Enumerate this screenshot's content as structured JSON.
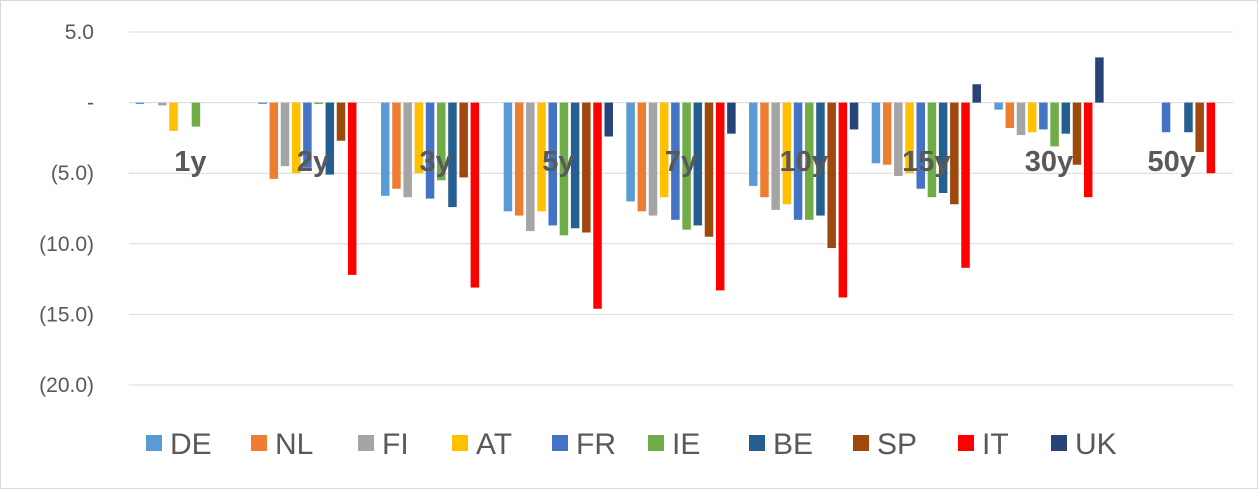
{
  "chart_data": {
    "type": "bar",
    "categories": [
      "1y",
      "2y",
      "3y",
      "5y",
      "7y",
      "10y",
      "15y",
      "30y",
      "50y"
    ],
    "y_tick_labels": [
      "5.0",
      "-",
      "(5.0)",
      "(10.0)",
      "(15.0)",
      "(20.0)"
    ],
    "y_ticks": [
      5,
      0,
      -5,
      -10,
      -15,
      -20
    ],
    "ylim": [
      -20,
      5
    ],
    "grid": true,
    "legend_position": "bottom",
    "series": [
      {
        "name": "DE",
        "color": "#5b9bd5",
        "values": [
          -0.1,
          -0.1,
          -6.6,
          -7.7,
          -7.0,
          -5.9,
          -4.3,
          -0.5,
          null
        ]
      },
      {
        "name": "NL",
        "color": "#ed7d31",
        "values": [
          null,
          -5.4,
          -6.1,
          -8.0,
          -7.7,
          -6.7,
          -4.4,
          -1.8,
          null
        ]
      },
      {
        "name": "FI",
        "color": "#a5a5a5",
        "values": [
          -0.2,
          -4.5,
          -6.7,
          -9.1,
          -8.0,
          -7.6,
          -5.2,
          -2.3,
          null
        ]
      },
      {
        "name": "AT",
        "color": "#ffc000",
        "values": [
          -2.0,
          -5.0,
          -5.0,
          -7.7,
          -6.7,
          -7.2,
          -5.0,
          -2.1,
          null
        ]
      },
      {
        "name": "FR",
        "color": "#4472c4",
        "values": [
          null,
          -4.6,
          -6.8,
          -8.7,
          -8.3,
          -8.3,
          -6.1,
          -1.9,
          -2.1
        ]
      },
      {
        "name": "IE",
        "color": "#70ad47",
        "values": [
          -1.7,
          -0.1,
          -5.5,
          -9.4,
          -9.0,
          -8.3,
          -6.7,
          -3.1,
          null
        ]
      },
      {
        "name": "BE",
        "color": "#255e91",
        "values": [
          null,
          -5.1,
          -7.4,
          -8.9,
          -8.7,
          -8.0,
          -6.4,
          -2.2,
          -2.1
        ]
      },
      {
        "name": "SP",
        "color": "#9e480e",
        "values": [
          null,
          -2.7,
          -5.3,
          -9.2,
          -9.5,
          -10.3,
          -7.2,
          -4.4,
          -3.5
        ]
      },
      {
        "name": "IT",
        "color": "#ff0000",
        "values": [
          null,
          -12.2,
          -13.1,
          -14.6,
          -13.3,
          -13.8,
          -11.7,
          -6.7,
          -5.0
        ]
      },
      {
        "name": "UK",
        "color": "#264478",
        "values": [
          null,
          null,
          null,
          -2.4,
          -2.2,
          -1.9,
          1.3,
          3.2,
          null
        ]
      }
    ]
  }
}
